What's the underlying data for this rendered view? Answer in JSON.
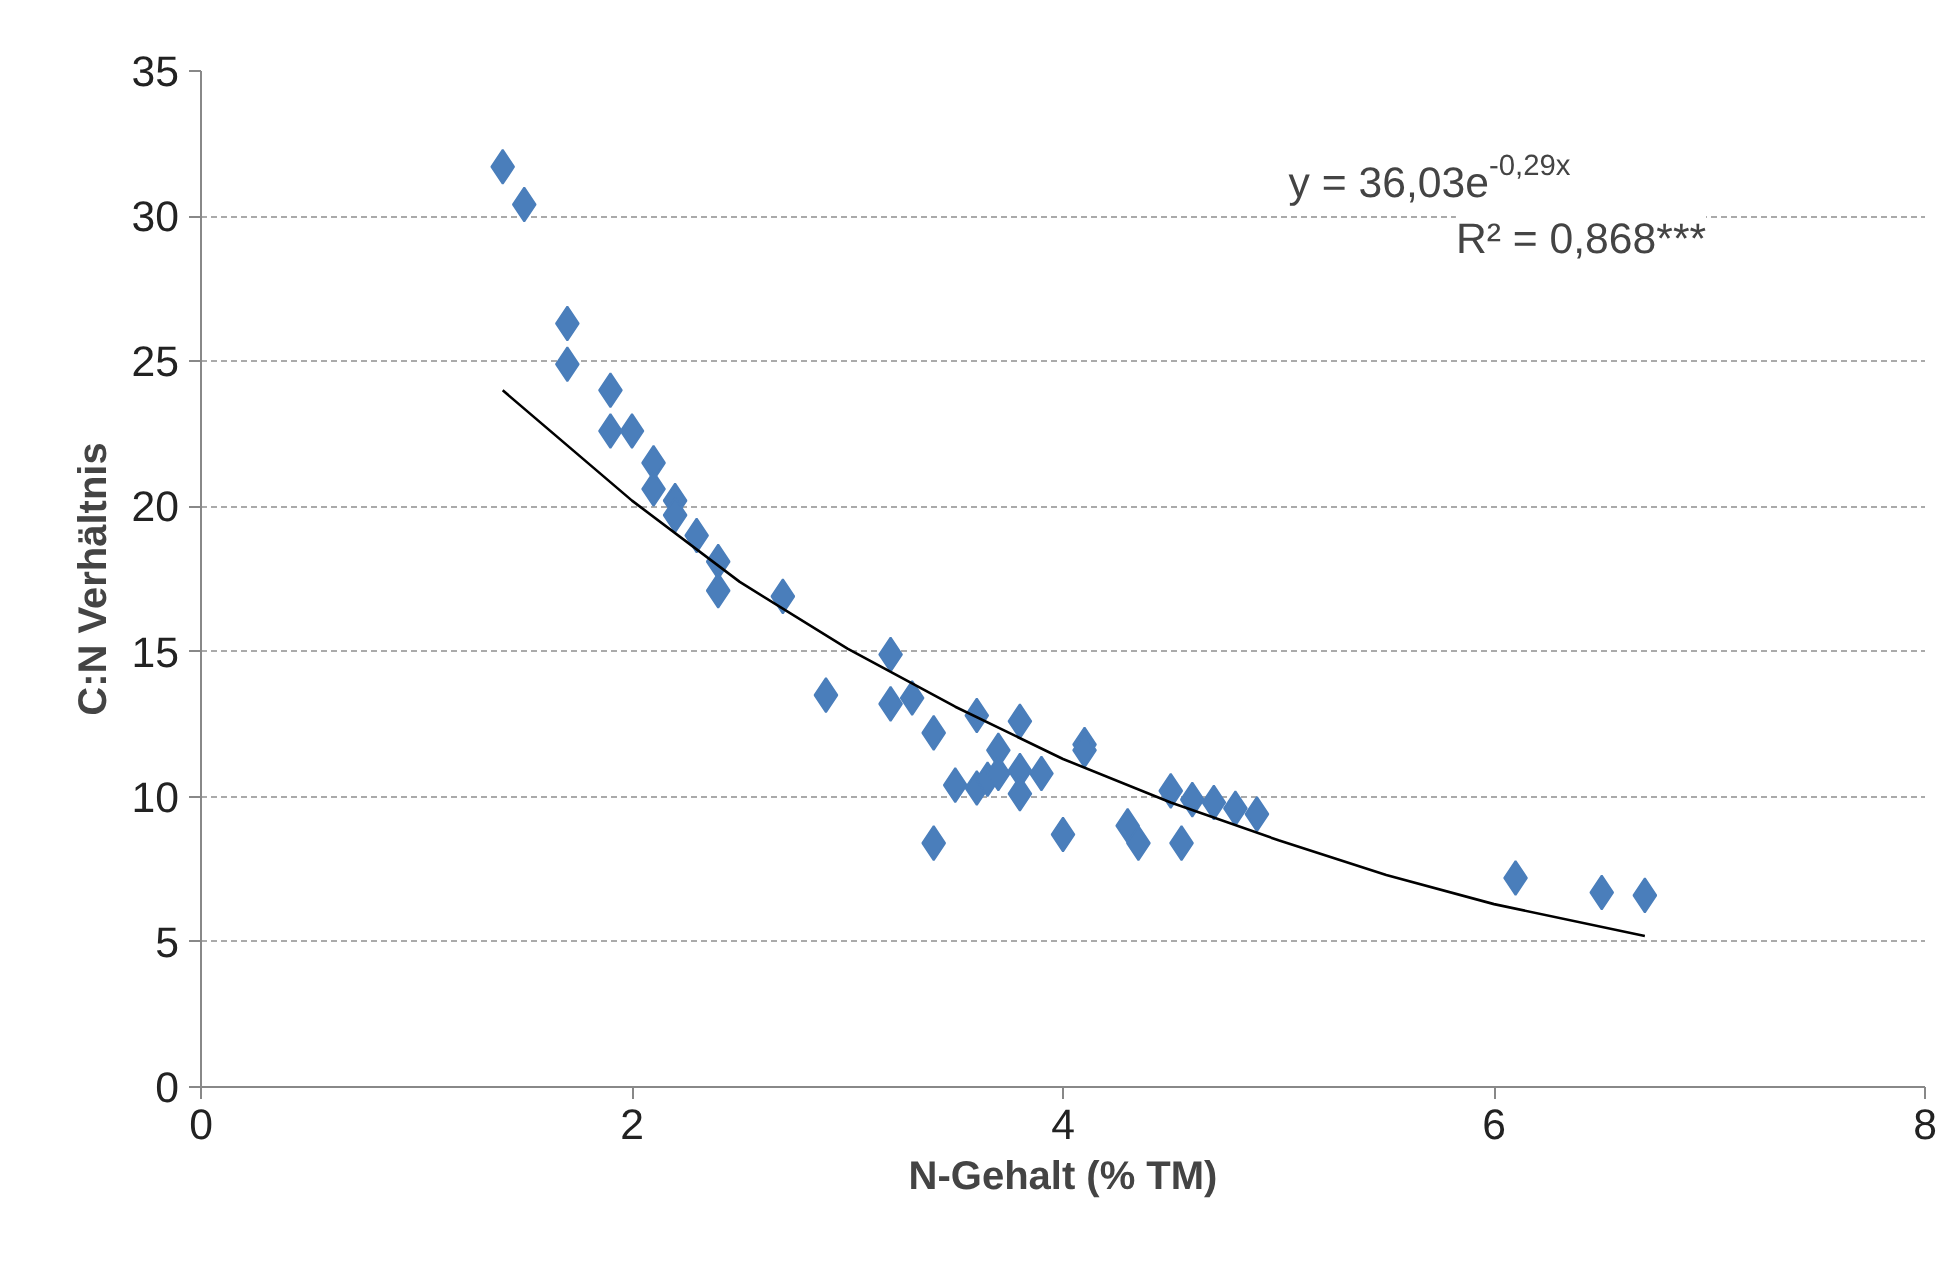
{
  "chart_data": {
    "type": "scatter",
    "xlabel": "N-Gehalt (% TM)",
    "ylabel": "C:N Verhältnis",
    "xlim": [
      0,
      8
    ],
    "xticks": [
      0,
      2,
      4,
      6,
      8
    ],
    "ylim": [
      0,
      35
    ],
    "yticks": [
      0,
      5,
      10,
      15,
      20,
      25,
      30,
      35
    ],
    "grid": "y",
    "series": [
      {
        "marker": "diamond",
        "color": "#4a7ebb",
        "x": [
          1.4,
          1.5,
          1.7,
          1.7,
          1.9,
          1.9,
          2.0,
          2.1,
          2.1,
          2.2,
          2.2,
          2.3,
          2.4,
          2.4,
          2.7,
          2.9,
          3.2,
          3.2,
          3.3,
          3.4,
          3.4,
          3.5,
          3.6,
          3.6,
          3.65,
          3.7,
          3.7,
          3.8,
          3.8,
          3.8,
          3.9,
          4.0,
          4.1,
          4.1,
          4.3,
          4.35,
          4.5,
          4.55,
          4.6,
          4.7,
          4.8,
          4.9,
          6.1,
          6.5,
          6.7
        ],
        "values": [
          31.7,
          30.4,
          26.3,
          24.9,
          24.0,
          22.6,
          22.6,
          21.5,
          20.6,
          20.2,
          19.7,
          19.0,
          18.1,
          17.1,
          16.9,
          13.5,
          14.9,
          13.2,
          13.4,
          12.2,
          8.4,
          10.4,
          12.8,
          10.3,
          10.6,
          11.6,
          10.8,
          12.6,
          10.9,
          10.1,
          10.8,
          8.7,
          11.8,
          11.6,
          9.0,
          8.4,
          10.2,
          8.4,
          9.9,
          9.8,
          9.6,
          9.4,
          7.2,
          6.7,
          6.6
        ]
      },
      {
        "type": "line",
        "color": "#000000",
        "line_style": "solid",
        "x": [
          1.4,
          2,
          2.5,
          3,
          3.5,
          4,
          4.5,
          5,
          5.5,
          6,
          6.7
        ],
        "values": [
          24.0,
          20.2,
          17.4,
          15.1,
          13.1,
          11.3,
          9.8,
          8.5,
          7.3,
          6.3,
          5.2
        ]
      }
    ],
    "annotations": [
      "y = 36,03e$^{-0,29x}$",
      "R² = 0,868***"
    ]
  }
}
